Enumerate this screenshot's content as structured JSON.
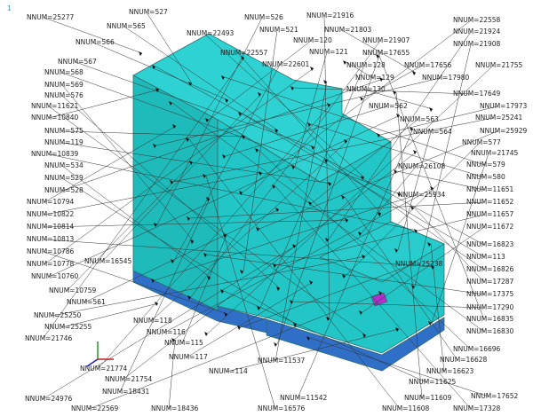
{
  "window_number": "1",
  "node_labels": [
    "NNUM=25277",
    "NNUM=566",
    "NNUM=567",
    "NNUM=568",
    "NNUM=569",
    "NNUM=576",
    "NNUM=11621",
    "NNUM=10840",
    "NNUM=575",
    "NNUM=119",
    "NNUM=10839",
    "NNUM=534",
    "NNUM=529",
    "NNUM=528",
    "NNUM=10794",
    "NNUM=10822",
    "NNUM=10814",
    "NNUM=10813",
    "NNUM=10786",
    "NNUM=10778",
    "NNUM=10760",
    "NNUM=10759",
    "NNUM=561",
    "NNUM=25250",
    "NNUM=25255",
    "NNUM=21746",
    "NNUM=21774",
    "NNUM=21754",
    "NNUM=18431",
    "NNUM=24976",
    "NNUM=22569",
    "NNUM=18436",
    "NNUM=16545",
    "NNUM=118",
    "NNUM=116",
    "NNUM=115",
    "NNUM=117",
    "NNUM=114",
    "NNUM=527",
    "NNUM=565",
    "NNUM=22493",
    "NNUM=526",
    "NNUM=521",
    "NNUM=21916",
    "NNUM=21803",
    "NNUM=120",
    "NNUM=121",
    "NNUM=22557",
    "NNUM=22601",
    "NNUM=128",
    "NNUM=129",
    "NNUM=130",
    "NNUM=562",
    "NNUM=563",
    "NNUM=564",
    "NNUM=21907",
    "NNUM=17655",
    "NNUM=17656",
    "NNUM=17980",
    "NNUM=22558",
    "NNUM=21924",
    "NNUM=21908",
    "NNUM=21755",
    "NNUM=17649",
    "NNUM=17973",
    "NNUM=25241",
    "NNUM=25929",
    "NNUM=577",
    "NNUM=21745",
    "NNUM=579",
    "NNUM=580",
    "NNUM=11651",
    "NNUM=11652",
    "NNUM=11657",
    "NNUM=11672",
    "NNUM=16823",
    "NNUM=113",
    "NNUM=16826",
    "NNUM=17287",
    "NNUM=17375",
    "NNUM=17290",
    "NNUM=16835",
    "NNUM=16830",
    "NNUM=16696",
    "NNUM=16628",
    "NNUM=16623",
    "NNUM=11625",
    "NNUM=17652",
    "NNUM=11609",
    "NNUM=11608",
    "NNUM=17328",
    "NNUM=26108",
    "NNUM=25934",
    "NNUM=25238",
    "NNUM=11537",
    "NNUM=11542",
    "NNUM=16576"
  ]
}
